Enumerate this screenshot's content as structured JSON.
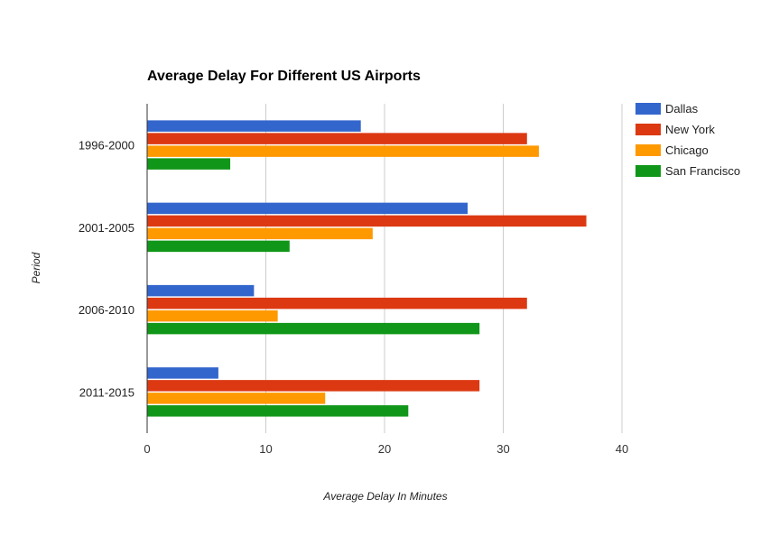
{
  "chart_data": {
    "type": "bar",
    "orientation": "horizontal",
    "title": "Average Delay For Different US Airports",
    "xlabel": "Average Delay In Minutes",
    "ylabel": "Period",
    "xlim": [
      0,
      40
    ],
    "xticks": [
      0,
      10,
      20,
      30,
      40
    ],
    "grid": true,
    "legend_position": "right",
    "categories": [
      "1996-2000",
      "2001-2005",
      "2006-2010",
      "2011-2015"
    ],
    "series": [
      {
        "name": "Dallas",
        "color": "#3366cc",
        "values": [
          18,
          27,
          9,
          6
        ]
      },
      {
        "name": "New York",
        "color": "#dc3912",
        "values": [
          32,
          37,
          32,
          28
        ]
      },
      {
        "name": "Chicago",
        "color": "#ff9900",
        "values": [
          33,
          19,
          11,
          15
        ]
      },
      {
        "name": "San Francisco",
        "color": "#109618",
        "values": [
          7,
          12,
          28,
          22
        ]
      }
    ]
  }
}
